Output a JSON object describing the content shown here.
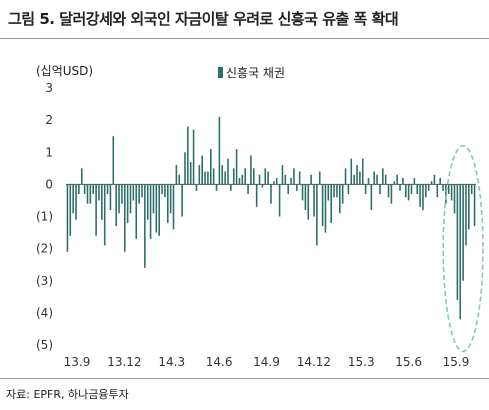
{
  "title": "그림 5. 달러강세와 외국인 자금이탈 우려로 신흥국 유출 폭 확대",
  "unit_label": "(십억USD)",
  "source": "자료: EPFR, 하나금융투자",
  "colors": {
    "bar": "#2c6e68",
    "highlight": "#8cc3bf",
    "axis": "#555555"
  },
  "chart_data": {
    "type": "bar",
    "title": "",
    "xlabel": "",
    "ylabel": "(십억USD)",
    "ylim": [
      -5,
      3
    ],
    "y_ticks": [
      "3",
      "2",
      "1",
      "0",
      "(1)",
      "(2)",
      "(3)",
      "(4)",
      "(5)"
    ],
    "x_tick_labels": [
      "13.9",
      "13.12",
      "14.3",
      "14.6",
      "14.9",
      "14.12",
      "15.3",
      "15.6",
      "15.9"
    ],
    "legend": {
      "position": "top-center"
    },
    "annotations": [
      {
        "type": "dashed-ellipse",
        "target": "15.9 weeks"
      }
    ],
    "series": [
      {
        "name": "신흥국 채권",
        "values": [
          -2.1,
          -1.6,
          -0.9,
          -1.1,
          -0.3,
          0.5,
          -0.3,
          -0.6,
          -0.6,
          -0.3,
          -1.6,
          -0.5,
          -1.1,
          -1.9,
          -0.3,
          -0.8,
          1.5,
          -1.3,
          -0.9,
          -0.6,
          -2.1,
          -1.2,
          -0.9,
          -0.5,
          -1.7,
          -0.6,
          -0.4,
          -2.6,
          -1.1,
          -1.7,
          -0.9,
          -1.5,
          -1.6,
          -0.3,
          -0.4,
          -1.2,
          -0.9,
          -1.4,
          0.6,
          0.3,
          -1.0,
          1.0,
          1.8,
          0.7,
          1.7,
          -0.2,
          0.6,
          0.9,
          0.4,
          0.4,
          1.1,
          0.5,
          -0.2,
          2.1,
          0.6,
          0.4,
          0.8,
          -0.2,
          0.5,
          1.1,
          0.2,
          0.3,
          0.5,
          -0.3,
          0.9,
          0.5,
          -0.7,
          0.3,
          -0.1,
          0.5,
          0.4,
          -0.6,
          0.1,
          0.2,
          -1.0,
          0.6,
          0.3,
          -0.3,
          0.2,
          0.5,
          -0.2,
          0.4,
          -0.5,
          -0.8,
          -1.1,
          0.3,
          -1.0,
          -1.9,
          0.4,
          -1.3,
          -1.5,
          -0.5,
          -1.2,
          -0.4,
          -0.4,
          -0.9,
          -0.6,
          0.5,
          -0.3,
          0.8,
          0.3,
          0.6,
          0.4,
          0.8,
          -0.3,
          0.2,
          -0.8,
          0.4,
          0.3,
          -0.3,
          0.5,
          0.3,
          -0.4,
          -0.6,
          0.1,
          0.3,
          -0.2,
          0.2,
          -0.4,
          -0.5,
          -0.3,
          0.2,
          -0.3,
          -0.7,
          -0.8,
          -0.4,
          -0.2,
          0.1,
          0.3,
          -0.4,
          0.2,
          -0.2,
          -0.6,
          -0.3,
          -0.5,
          -0.9,
          -3.6,
          -4.2,
          -3.0,
          -1.9,
          -1.4,
          -0.3,
          -1.3
        ]
      }
    ]
  }
}
